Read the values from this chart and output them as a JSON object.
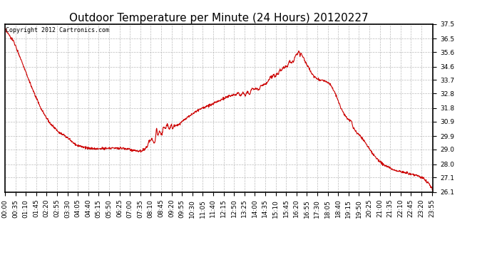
{
  "title": "Outdoor Temperature per Minute (24 Hours) 20120227",
  "copyright_text": "Copyright 2012 Cartronics.com",
  "line_color": "#cc0000",
  "background_color": "#ffffff",
  "grid_color": "#aaaaaa",
  "ylim": [
    26.1,
    37.5
  ],
  "yticks": [
    26.1,
    27.1,
    28.0,
    29.0,
    29.9,
    30.9,
    31.8,
    32.8,
    33.7,
    34.6,
    35.6,
    36.5,
    37.5
  ],
  "title_fontsize": 11,
  "tick_fontsize": 6.5,
  "figwidth": 6.9,
  "figheight": 3.75,
  "dpi": 100
}
